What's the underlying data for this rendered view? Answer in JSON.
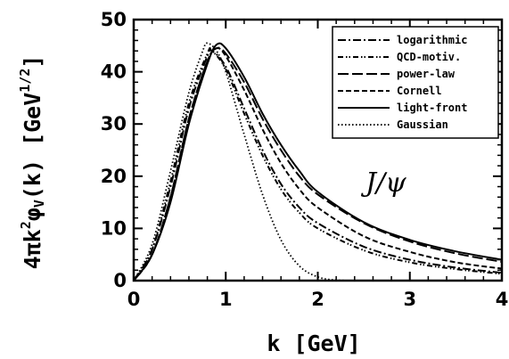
{
  "chart_data": {
    "type": "line",
    "xlabel": "k [GeV]",
    "ylabel": "4πk²φV(k) [GeV1/2]",
    "ylabel_parts": {
      "main": "4πk",
      "sq": "2",
      "phi": "φ",
      "sub": "V",
      "rest": "(k) [GeV",
      "sup": "1/2",
      "close": "]"
    },
    "xlim": [
      0,
      4
    ],
    "ylim": [
      0,
      50
    ],
    "xticks": [
      0,
      1,
      2,
      3,
      4
    ],
    "yticks": [
      0,
      10,
      20,
      30,
      40,
      50
    ],
    "grid": false,
    "legend_position": "top-right",
    "annotation": "J/ψ",
    "series": [
      {
        "name": "logarithmic",
        "style": "dash-dot",
        "points": [
          [
            0,
            0
          ],
          [
            0.2,
            6
          ],
          [
            0.4,
            18
          ],
          [
            0.6,
            33
          ],
          [
            0.8,
            43
          ],
          [
            0.85,
            44
          ],
          [
            1.0,
            41
          ],
          [
            1.2,
            33
          ],
          [
            1.4,
            25
          ],
          [
            1.6,
            18.5
          ],
          [
            1.8,
            14
          ],
          [
            2.0,
            11
          ],
          [
            2.5,
            6.5
          ],
          [
            3.0,
            4
          ],
          [
            3.5,
            2.5
          ],
          [
            4.0,
            1.5
          ]
        ]
      },
      {
        "name": "QCD-motiv.",
        "style": "dash-dot-dot",
        "points": [
          [
            0,
            0
          ],
          [
            0.2,
            6
          ],
          [
            0.4,
            19
          ],
          [
            0.6,
            34
          ],
          [
            0.8,
            43.5
          ],
          [
            0.85,
            44
          ],
          [
            1.0,
            40.5
          ],
          [
            1.2,
            32
          ],
          [
            1.4,
            24
          ],
          [
            1.6,
            17.5
          ],
          [
            1.8,
            13
          ],
          [
            2.0,
            10
          ],
          [
            2.5,
            5.8
          ],
          [
            3.0,
            3.5
          ],
          [
            3.5,
            2.2
          ],
          [
            4.0,
            1.3
          ]
        ]
      },
      {
        "name": "power-law",
        "style": "long-dash",
        "points": [
          [
            0,
            0
          ],
          [
            0.2,
            5
          ],
          [
            0.4,
            16
          ],
          [
            0.6,
            31
          ],
          [
            0.8,
            42
          ],
          [
            0.9,
            44.5
          ],
          [
            1.0,
            43.5
          ],
          [
            1.2,
            38
          ],
          [
            1.4,
            31
          ],
          [
            1.6,
            25
          ],
          [
            1.8,
            20
          ],
          [
            2.0,
            16.5
          ],
          [
            2.5,
            11
          ],
          [
            3.0,
            7.5
          ],
          [
            3.5,
            5.2
          ],
          [
            4.0,
            3.6
          ]
        ]
      },
      {
        "name": "Cornell",
        "style": "dash",
        "points": [
          [
            0,
            0
          ],
          [
            0.2,
            5
          ],
          [
            0.4,
            16
          ],
          [
            0.6,
            31
          ],
          [
            0.8,
            42
          ],
          [
            0.9,
            44.5
          ],
          [
            1.0,
            43
          ],
          [
            1.2,
            36.5
          ],
          [
            1.4,
            29
          ],
          [
            1.6,
            22.5
          ],
          [
            1.8,
            17.5
          ],
          [
            2.0,
            14
          ],
          [
            2.5,
            8.5
          ],
          [
            3.0,
            5.5
          ],
          [
            3.5,
            3.5
          ],
          [
            4.0,
            2.3
          ]
        ]
      },
      {
        "name": "light-front",
        "style": "solid",
        "points": [
          [
            0,
            0
          ],
          [
            0.2,
            5
          ],
          [
            0.4,
            15
          ],
          [
            0.6,
            30
          ],
          [
            0.8,
            41.5
          ],
          [
            0.9,
            45.2
          ],
          [
            1.0,
            44.5
          ],
          [
            1.2,
            39
          ],
          [
            1.4,
            32
          ],
          [
            1.6,
            26
          ],
          [
            1.8,
            21
          ],
          [
            2.0,
            17
          ],
          [
            2.5,
            11.2
          ],
          [
            3.0,
            7.8
          ],
          [
            3.5,
            5.6
          ],
          [
            4.0,
            4.0
          ]
        ]
      },
      {
        "name": "Gaussian",
        "style": "dot",
        "points": [
          [
            0,
            0
          ],
          [
            0.2,
            7
          ],
          [
            0.4,
            21
          ],
          [
            0.6,
            36
          ],
          [
            0.75,
            44
          ],
          [
            0.8,
            45.5
          ],
          [
            0.9,
            44
          ],
          [
            1.0,
            40
          ],
          [
            1.2,
            28
          ],
          [
            1.4,
            16.5
          ],
          [
            1.6,
            7.8
          ],
          [
            1.8,
            2.8
          ],
          [
            2.0,
            0.7
          ],
          [
            2.2,
            0.1
          ],
          [
            2.5,
            0
          ],
          [
            3.0,
            0
          ],
          [
            4.0,
            0
          ]
        ]
      }
    ]
  }
}
